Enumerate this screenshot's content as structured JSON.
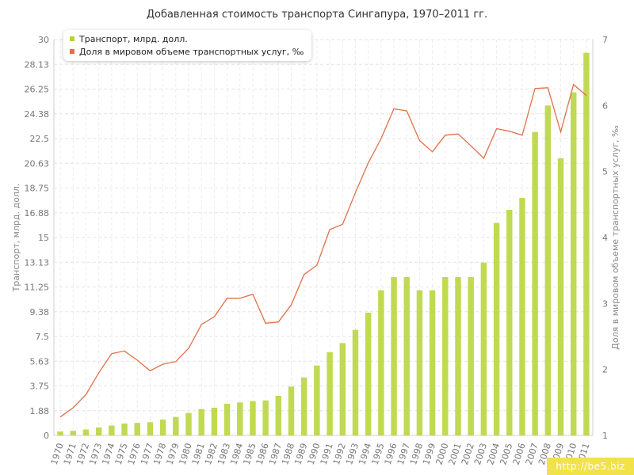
{
  "chart_data": {
    "type": "bar",
    "title": "Добавленная стоимость транспорта Сингапура, 1970–2011 гг.",
    "ylabel": "Транспорт, млрд. долл.",
    "y2label": "Доля в мировом объеме транспортных услуг, ‰",
    "categories": [
      "1970",
      "1971",
      "1972",
      "1973",
      "1974",
      "1975",
      "1976",
      "1977",
      "1978",
      "1979",
      "1980",
      "1981",
      "1982",
      "1983",
      "1984",
      "1985",
      "1986",
      "1987",
      "1988",
      "1989",
      "1990",
      "1991",
      "1992",
      "1993",
      "1994",
      "1995",
      "1996",
      "1997",
      "1998",
      "1999",
      "2000",
      "2001",
      "2002",
      "2003",
      "2004",
      "2005",
      "2006",
      "2007",
      "2008",
      "2009",
      "2010",
      "2011"
    ],
    "ylim": [
      0,
      30
    ],
    "yticks": [
      "0",
      "1.88",
      "3.75",
      "5.63",
      "7.5",
      "9.38",
      "11.25",
      "13.13",
      "15",
      "16.88",
      "18.75",
      "20.63",
      "22.5",
      "24.38",
      "26.25",
      "28.13",
      "30"
    ],
    "y2lim": [
      1,
      7
    ],
    "y2ticks": [
      "1",
      "2",
      "3",
      "4",
      "5",
      "6",
      "7"
    ],
    "grid": true,
    "legend_position": "top-left",
    "series": [
      {
        "name": "Транспорт, млрд. долл.",
        "type": "bar",
        "axis": "left",
        "color": "#b5d334",
        "values": [
          0.3,
          0.35,
          0.45,
          0.6,
          0.75,
          0.9,
          0.95,
          1.0,
          1.2,
          1.4,
          1.7,
          2.0,
          2.1,
          2.4,
          2.5,
          2.6,
          2.65,
          3.0,
          3.7,
          4.4,
          5.3,
          6.3,
          7.0,
          8.0,
          9.3,
          11.0,
          12.0,
          12.0,
          11.0,
          11.0,
          12.0,
          12.0,
          12.0,
          13.1,
          16.1,
          17.1,
          18.0,
          23.0,
          25.0,
          21.0,
          26.0,
          29.0
        ]
      },
      {
        "name": "Доля в мировом объеме транспортных услуг, ‰",
        "type": "line",
        "axis": "right",
        "color": "#e0704a",
        "values": [
          1.28,
          1.42,
          1.62,
          1.95,
          2.24,
          2.28,
          2.14,
          1.98,
          2.08,
          2.12,
          2.32,
          2.68,
          2.8,
          3.08,
          3.08,
          3.14,
          2.7,
          2.72,
          2.98,
          3.44,
          3.58,
          4.12,
          4.2,
          4.68,
          5.13,
          5.5,
          5.95,
          5.92,
          5.47,
          5.3,
          5.55,
          5.57,
          5.39,
          5.2,
          5.65,
          5.61,
          5.55,
          6.26,
          6.27,
          5.6,
          6.32,
          6.15
        ]
      }
    ]
  },
  "watermark": "http://be5.biz"
}
